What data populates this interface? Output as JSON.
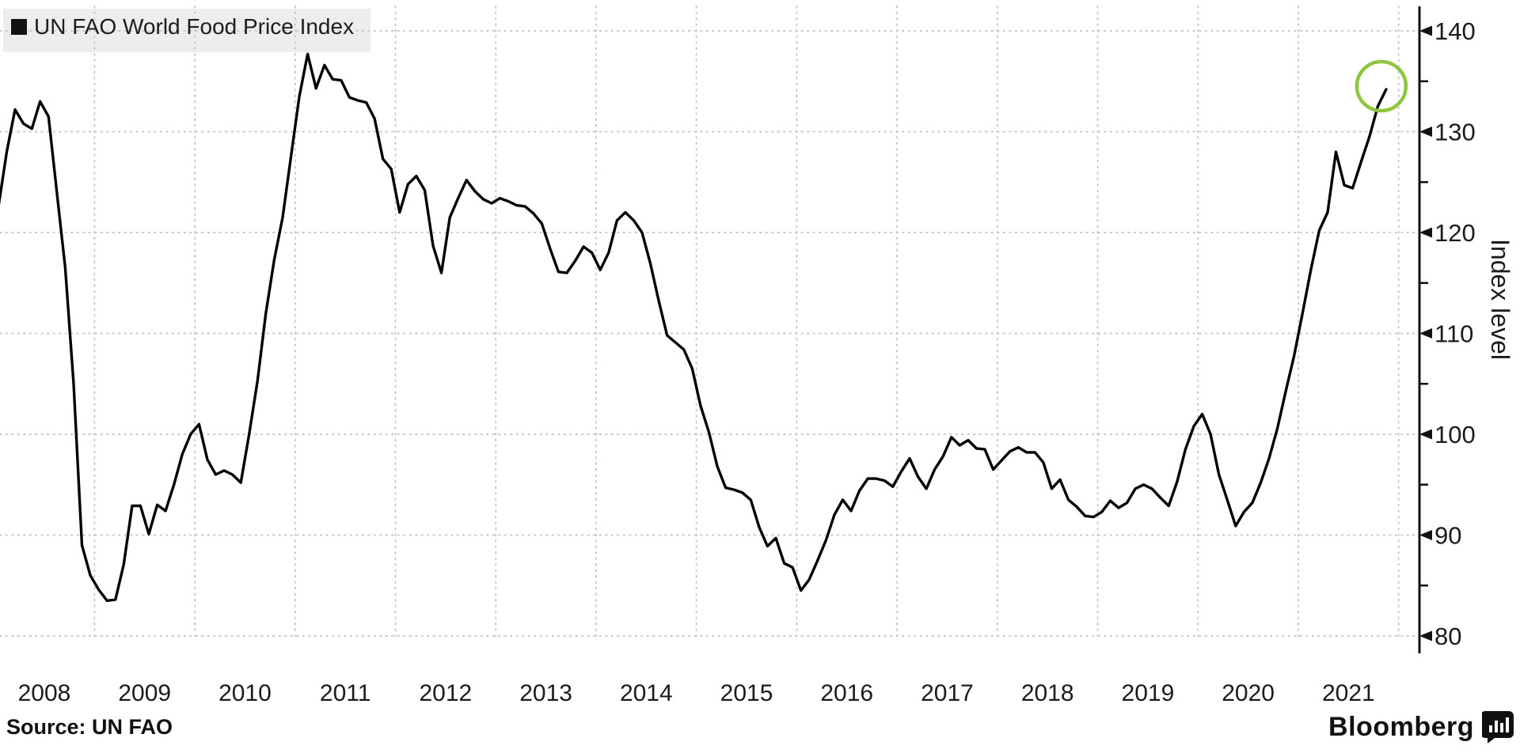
{
  "legend": {
    "label": "UN FAO World Food Price Index"
  },
  "source": {
    "label": "Source: UN FAO"
  },
  "branding": {
    "label": "Bloomberg"
  },
  "y_axis": {
    "title": "Index level",
    "ticks": [
      80,
      90,
      100,
      110,
      120,
      130,
      140
    ],
    "minor_ticks": [
      85,
      95,
      105,
      115,
      125,
      135
    ]
  },
  "x_axis": {
    "years": [
      "2008",
      "2009",
      "2010",
      "2011",
      "2012",
      "2013",
      "2014",
      "2015",
      "2016",
      "2017",
      "2018",
      "2019",
      "2020",
      "2021"
    ]
  },
  "highlight": {
    "shape": "circle",
    "color": "#8ec63f",
    "note": "latest data point circled"
  },
  "colors": {
    "line": "#000000",
    "grid": "#c9c9c9",
    "text": "#1b1b1b",
    "legend_bg": "#ededed",
    "highlight": "#8ec63f"
  },
  "chart_data": {
    "type": "line",
    "title": "UN FAO World Food Price Index",
    "xlabel": "",
    "ylabel": "Index level",
    "ylim": [
      78,
      142
    ],
    "x_start": "2008-01",
    "x_end": "2021-11",
    "frequency": "monthly",
    "grid": "dotted",
    "legend_position": "top-left",
    "series": [
      {
        "name": "UN FAO World Food Price Index",
        "values": [
          122.5,
          128.0,
          132.2,
          130.8,
          130.3,
          133.0,
          131.5,
          124.0,
          116.5,
          105.0,
          89.0,
          86.0,
          84.6,
          83.5,
          83.6,
          87.1,
          92.9,
          92.9,
          90.1,
          93.0,
          92.4,
          95.0,
          98.0,
          100.0,
          101.0,
          97.5,
          96.0,
          96.4,
          96.0,
          95.2,
          100.0,
          105.3,
          112.0,
          117.3,
          121.5,
          127.5,
          133.5,
          137.7,
          134.3,
          136.6,
          135.2,
          135.1,
          133.4,
          133.1,
          132.9,
          131.3,
          127.3,
          126.3,
          122.0,
          124.8,
          125.6,
          124.2,
          118.7,
          116.0,
          121.5,
          123.4,
          125.2,
          124.1,
          123.3,
          122.9,
          123.4,
          123.1,
          122.7,
          122.6,
          121.9,
          120.9,
          118.4,
          116.1,
          116.0,
          117.2,
          118.6,
          118.0,
          116.3,
          118.0,
          121.2,
          122.0,
          121.2,
          120.0,
          116.9,
          113.2,
          109.8,
          109.1,
          108.4,
          106.5,
          102.8,
          100.2,
          96.8,
          94.7,
          94.5,
          94.2,
          93.5,
          90.8,
          88.9,
          89.7,
          87.2,
          86.8,
          84.5,
          85.6,
          87.5,
          89.5,
          92.0,
          93.5,
          92.4,
          94.4,
          95.6,
          95.6,
          95.4,
          94.8,
          96.3,
          97.6,
          95.8,
          94.6,
          96.5,
          97.8,
          99.7,
          98.9,
          99.4,
          98.6,
          98.5,
          96.5,
          97.4,
          98.3,
          98.7,
          98.2,
          98.2,
          97.2,
          94.6,
          95.5,
          93.5,
          92.8,
          91.9,
          91.8,
          92.3,
          93.4,
          92.7,
          93.2,
          94.6,
          95.0,
          94.6,
          93.7,
          92.9,
          95.3,
          98.5,
          100.8,
          102.0,
          100.0,
          96.0,
          93.5,
          90.9,
          92.3,
          93.2,
          95.2,
          97.6,
          100.6,
          104.3,
          107.8,
          112.0,
          116.3,
          120.2,
          122.0,
          128.0,
          124.7,
          124.4,
          127.0,
          129.5,
          132.5,
          134.2
        ]
      }
    ],
    "annotations": [
      {
        "type": "circle",
        "x": "2021-11",
        "y": 134.2,
        "color": "#8ec63f"
      }
    ]
  }
}
